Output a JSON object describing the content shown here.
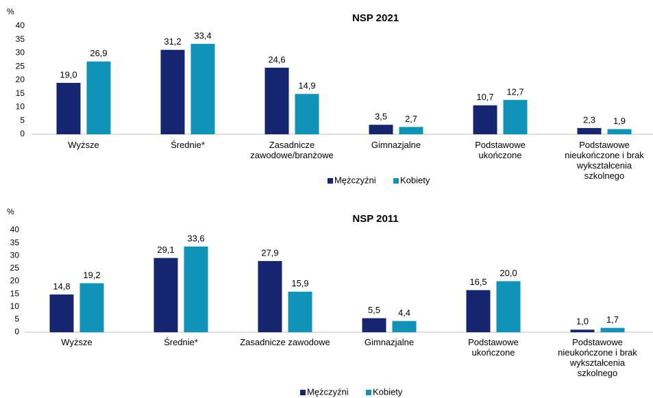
{
  "chart_data": [
    {
      "type": "bar",
      "title": "NSP 2021",
      "y_axis_label": "%",
      "categories": [
        "Wyższe",
        "Średnie*",
        "Zasadnicze zawodowe/branżowe",
        "Gimnazjalne",
        "Podstawowe ukończone",
        "Podstawowe nieukończone i brak wykształcenia szkolnego"
      ],
      "series": [
        {
          "name": "Mężczyźni",
          "color": "#15256f",
          "values": [
            19.0,
            31.2,
            24.6,
            3.5,
            10.7,
            2.3
          ],
          "value_labels": [
            "19,0",
            "31,2",
            "24,6",
            "3,5",
            "10,7",
            "2,3"
          ]
        },
        {
          "name": "Kobiety",
          "color": "#0f93b8",
          "values": [
            26.9,
            33.4,
            14.9,
            2.7,
            12.7,
            1.9
          ],
          "value_labels": [
            "26,9",
            "33,4",
            "14,9",
            "2,7",
            "12,7",
            "1,9"
          ]
        }
      ],
      "ylim": [
        0,
        40
      ],
      "yticks": [
        0,
        5,
        10,
        15,
        20,
        25,
        30,
        35,
        40
      ],
      "grid": false,
      "legend": "bottom"
    },
    {
      "type": "bar",
      "title": "NSP 2011",
      "y_axis_label": "%",
      "categories": [
        "Wyższe",
        "Średnie*",
        "Zasadnicze zawodowe",
        "Gimnazjalne",
        "Podstawowe ukończone",
        "Podstawowe nieukończone i brak wykształcenia szkolnego"
      ],
      "series": [
        {
          "name": "Mężczyźni",
          "color": "#15256f",
          "values": [
            14.8,
            29.1,
            27.9,
            5.5,
            16.5,
            1.0
          ],
          "value_labels": [
            "14,8",
            "29,1",
            "27,9",
            "5,5",
            "16,5",
            "1,0"
          ]
        },
        {
          "name": "Kobiety",
          "color": "#0f93b8",
          "values": [
            19.2,
            33.6,
            15.9,
            4.4,
            20.0,
            1.7
          ],
          "value_labels": [
            "19,2",
            "33,6",
            "15,9",
            "4,4",
            "20,0",
            "1,7"
          ]
        }
      ],
      "ylim": [
        0,
        40
      ],
      "yticks": [
        0,
        5,
        10,
        15,
        20,
        25,
        30,
        35,
        40
      ],
      "grid": false,
      "legend": "bottom"
    }
  ]
}
